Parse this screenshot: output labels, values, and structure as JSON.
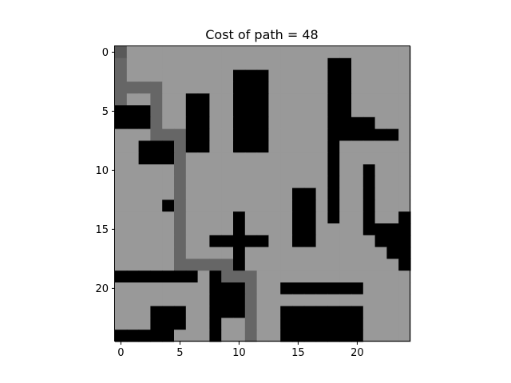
{
  "chart_data": {
    "type": "heatmap",
    "title": "Cost of path = 48",
    "xlabel": "",
    "ylabel": "",
    "xticks": [
      0,
      5,
      10,
      15,
      20
    ],
    "yticks": [
      0,
      5,
      10,
      15,
      20
    ],
    "xlim": [
      -0.5,
      24.5
    ],
    "ylim": [
      24.5,
      -0.5
    ],
    "grid": false,
    "colormap": {
      "0": "#000000",
      "1": "#999999",
      "2": "#666666",
      "3": "#595959",
      "4": "#ffffff"
    },
    "legend": {
      "0": "obstacle",
      "1": "free",
      "2": "path",
      "3": "endpoint",
      "4": "blank"
    },
    "grid_values": [
      [
        3,
        1,
        1,
        1,
        1,
        1,
        1,
        1,
        1,
        1,
        1,
        1,
        1,
        1,
        1,
        1,
        1,
        1,
        1,
        1,
        1,
        1,
        1,
        1,
        1
      ],
      [
        2,
        1,
        1,
        1,
        1,
        1,
        1,
        1,
        1,
        1,
        1,
        1,
        1,
        1,
        1,
        1,
        1,
        1,
        0,
        0,
        1,
        1,
        1,
        1,
        1
      ],
      [
        2,
        1,
        1,
        1,
        1,
        1,
        1,
        1,
        1,
        1,
        0,
        0,
        0,
        1,
        1,
        1,
        1,
        1,
        0,
        0,
        1,
        1,
        1,
        1,
        1
      ],
      [
        2,
        2,
        2,
        2,
        1,
        1,
        1,
        1,
        1,
        1,
        0,
        0,
        0,
        1,
        1,
        1,
        1,
        1,
        0,
        0,
        1,
        1,
        1,
        1,
        1
      ],
      [
        2,
        1,
        1,
        2,
        1,
        1,
        0,
        0,
        1,
        1,
        0,
        0,
        0,
        1,
        1,
        1,
        1,
        1,
        0,
        0,
        1,
        1,
        1,
        1,
        1
      ],
      [
        0,
        0,
        0,
        2,
        1,
        1,
        0,
        0,
        1,
        1,
        0,
        0,
        0,
        1,
        1,
        1,
        1,
        1,
        0,
        0,
        1,
        1,
        1,
        1,
        1
      ],
      [
        0,
        0,
        0,
        2,
        1,
        1,
        0,
        0,
        1,
        1,
        0,
        0,
        0,
        1,
        1,
        1,
        1,
        1,
        0,
        0,
        0,
        0,
        1,
        1,
        1
      ],
      [
        1,
        1,
        1,
        2,
        2,
        2,
        0,
        0,
        1,
        1,
        0,
        0,
        0,
        1,
        1,
        1,
        1,
        1,
        0,
        0,
        0,
        0,
        0,
        0,
        1
      ],
      [
        1,
        1,
        0,
        0,
        0,
        2,
        0,
        0,
        1,
        1,
        0,
        0,
        0,
        1,
        1,
        1,
        1,
        1,
        0,
        1,
        1,
        1,
        1,
        1,
        1
      ],
      [
        1,
        1,
        0,
        0,
        0,
        2,
        1,
        1,
        1,
        1,
        1,
        1,
        1,
        1,
        1,
        1,
        1,
        1,
        0,
        1,
        1,
        1,
        1,
        1,
        1
      ],
      [
        1,
        1,
        1,
        1,
        1,
        2,
        1,
        1,
        1,
        1,
        1,
        1,
        1,
        1,
        1,
        1,
        1,
        1,
        0,
        1,
        1,
        0,
        1,
        1,
        1
      ],
      [
        1,
        1,
        1,
        1,
        1,
        2,
        1,
        1,
        1,
        1,
        1,
        1,
        1,
        1,
        1,
        1,
        1,
        1,
        0,
        1,
        1,
        0,
        1,
        1,
        1
      ],
      [
        1,
        1,
        1,
        1,
        1,
        2,
        1,
        1,
        1,
        1,
        1,
        1,
        1,
        1,
        1,
        0,
        0,
        1,
        0,
        1,
        1,
        0,
        1,
        1,
        1
      ],
      [
        1,
        1,
        1,
        1,
        0,
        2,
        1,
        1,
        1,
        1,
        1,
        1,
        1,
        1,
        1,
        0,
        0,
        1,
        0,
        1,
        1,
        0,
        1,
        1,
        1
      ],
      [
        1,
        1,
        1,
        1,
        1,
        2,
        1,
        1,
        1,
        1,
        0,
        1,
        1,
        1,
        1,
        0,
        0,
        1,
        0,
        1,
        1,
        0,
        1,
        1,
        0
      ],
      [
        1,
        1,
        1,
        1,
        1,
        2,
        1,
        1,
        1,
        1,
        0,
        1,
        1,
        1,
        1,
        0,
        0,
        1,
        1,
        1,
        1,
        0,
        0,
        0,
        0
      ],
      [
        1,
        1,
        1,
        1,
        1,
        2,
        1,
        1,
        0,
        0,
        0,
        0,
        0,
        1,
        1,
        0,
        0,
        1,
        1,
        1,
        1,
        1,
        0,
        0,
        0
      ],
      [
        1,
        1,
        1,
        1,
        1,
        2,
        1,
        1,
        1,
        1,
        0,
        1,
        1,
        1,
        1,
        1,
        1,
        1,
        1,
        1,
        1,
        1,
        1,
        0,
        0
      ],
      [
        1,
        1,
        1,
        1,
        1,
        2,
        2,
        2,
        2,
        2,
        0,
        1,
        1,
        1,
        1,
        1,
        1,
        1,
        1,
        1,
        1,
        1,
        1,
        1,
        0
      ],
      [
        0,
        0,
        0,
        0,
        0,
        0,
        0,
        1,
        0,
        2,
        2,
        2,
        1,
        1,
        1,
        1,
        1,
        1,
        1,
        1,
        1,
        1,
        1,
        1,
        1
      ],
      [
        1,
        1,
        1,
        1,
        1,
        1,
        1,
        1,
        0,
        0,
        0,
        2,
        1,
        1,
        0,
        0,
        0,
        0,
        0,
        0,
        0,
        1,
        1,
        1,
        1
      ],
      [
        1,
        1,
        1,
        1,
        1,
        1,
        1,
        1,
        0,
        0,
        0,
        2,
        1,
        1,
        1,
        1,
        1,
        1,
        1,
        1,
        1,
        1,
        1,
        1,
        1
      ],
      [
        1,
        1,
        1,
        0,
        0,
        0,
        1,
        1,
        0,
        0,
        0,
        2,
        1,
        1,
        0,
        0,
        0,
        0,
        0,
        0,
        0,
        1,
        1,
        1,
        1
      ],
      [
        1,
        1,
        1,
        0,
        0,
        0,
        1,
        1,
        0,
        1,
        1,
        2,
        1,
        1,
        0,
        0,
        0,
        0,
        0,
        0,
        0,
        1,
        1,
        1,
        1
      ],
      [
        0,
        0,
        0,
        0,
        0,
        1,
        1,
        1,
        0,
        1,
        1,
        2,
        1,
        1,
        0,
        0,
        0,
        0,
        0,
        0,
        0,
        1,
        1,
        1,
        1
      ]
    ]
  }
}
